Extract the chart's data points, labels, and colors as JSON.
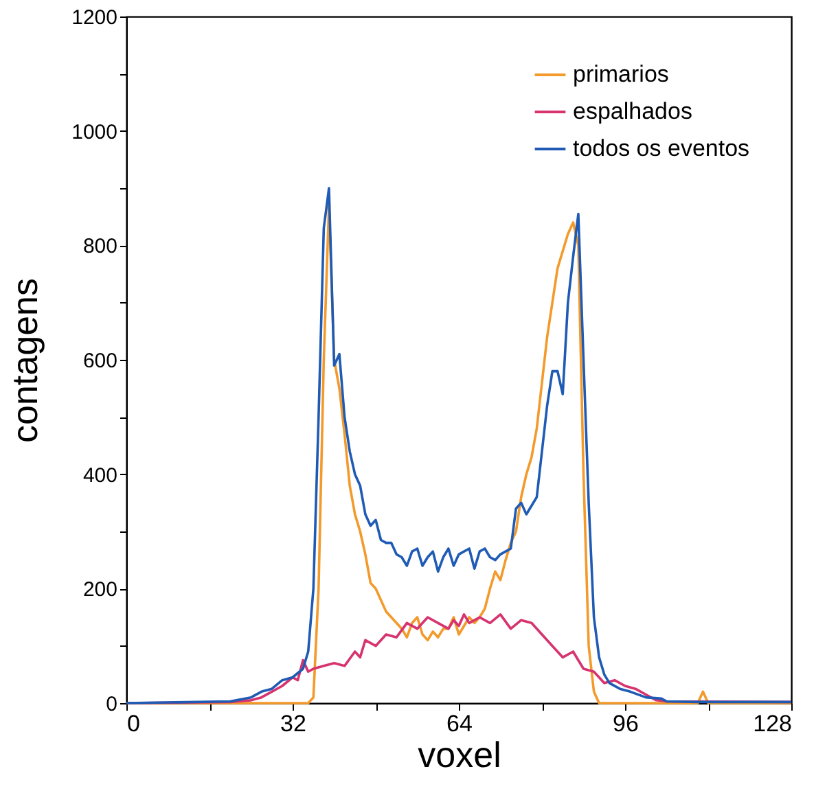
{
  "chart_data": {
    "type": "line",
    "xlabel": "voxel",
    "ylabel": "contagens",
    "xlim": [
      0,
      128
    ],
    "xticks": [
      0,
      {
        "value": 16,
        "label": null
      },
      32,
      {
        "value": 48,
        "label": null
      },
      64,
      {
        "value": 80,
        "label": null
      },
      96,
      {
        "value": 112,
        "label": null
      },
      128
    ],
    "ylim": [
      0,
      1200
    ],
    "yticks": [
      0,
      {
        "value": 100,
        "label": null
      },
      200,
      {
        "value": 300,
        "label": null
      },
      400,
      {
        "value": 500,
        "label": null
      },
      600,
      {
        "value": 700,
        "label": null
      },
      800,
      {
        "value": 900,
        "label": null
      },
      1000,
      {
        "value": 1100,
        "label": null
      },
      1200
    ],
    "grid": false,
    "legend": "top right",
    "marker": "none",
    "line_style": "solid",
    "series": [
      {
        "name": "primarios",
        "color": "#f39a2b",
        "x": [
          0,
          20,
          35,
          36,
          37,
          38,
          39,
          40,
          41,
          42,
          43,
          44,
          45,
          46,
          47,
          48,
          49,
          50,
          51,
          52,
          53,
          54,
          55,
          56,
          57,
          58,
          59,
          60,
          61,
          62,
          63,
          64,
          65,
          66,
          67,
          68,
          69,
          70,
          71,
          72,
          73,
          74,
          75,
          76,
          77,
          78,
          79,
          80,
          81,
          82,
          83,
          84,
          85,
          86,
          87,
          88,
          89,
          90,
          91,
          110,
          111,
          112,
          128
        ],
        "values": [
          0,
          0,
          0,
          10,
          200,
          600,
          870,
          600,
          550,
          470,
          380,
          330,
          300,
          260,
          210,
          200,
          180,
          160,
          150,
          140,
          130,
          115,
          140,
          150,
          120,
          110,
          125,
          115,
          130,
          130,
          150,
          120,
          135,
          150,
          140,
          150,
          165,
          200,
          230,
          215,
          250,
          280,
          300,
          360,
          400,
          430,
          480,
          560,
          640,
          700,
          760,
          790,
          820,
          840,
          800,
          400,
          100,
          20,
          0,
          0,
          20,
          0,
          0
        ]
      },
      {
        "name": "espalhados",
        "color": "#d6336f",
        "x": [
          0,
          20,
          24,
          26,
          28,
          30,
          32,
          33,
          34,
          35,
          36,
          38,
          40,
          42,
          44,
          45,
          46,
          48,
          50,
          52,
          54,
          56,
          58,
          60,
          62,
          63,
          64,
          65,
          66,
          68,
          70,
          72,
          74,
          76,
          78,
          80,
          82,
          84,
          86,
          88,
          90,
          92,
          94,
          96,
          98,
          100,
          102,
          104,
          128
        ],
        "values": [
          0,
          2,
          5,
          10,
          20,
          30,
          45,
          40,
          75,
          55,
          60,
          65,
          70,
          65,
          90,
          80,
          110,
          100,
          120,
          115,
          140,
          130,
          150,
          140,
          130,
          145,
          135,
          155,
          140,
          150,
          140,
          155,
          130,
          145,
          140,
          120,
          100,
          80,
          90,
          60,
          55,
          35,
          40,
          30,
          25,
          15,
          5,
          3,
          2
        ]
      },
      {
        "name": "todos os eventos",
        "color": "#1f5bb5",
        "x": [
          0,
          20,
          24,
          26,
          28,
          30,
          32,
          34,
          35,
          36,
          37,
          38,
          39,
          40,
          41,
          42,
          43,
          44,
          45,
          46,
          47,
          48,
          49,
          50,
          51,
          52,
          53,
          54,
          55,
          56,
          57,
          58,
          59,
          60,
          61,
          62,
          63,
          64,
          65,
          66,
          67,
          68,
          69,
          70,
          71,
          72,
          73,
          74,
          75,
          76,
          77,
          78,
          79,
          80,
          81,
          82,
          83,
          84,
          85,
          86,
          87,
          88,
          89,
          90,
          91,
          92,
          93,
          95,
          97,
          100,
          103,
          104,
          110,
          128
        ],
        "values": [
          0,
          3,
          10,
          20,
          25,
          40,
          45,
          60,
          90,
          200,
          500,
          830,
          900,
          590,
          610,
          500,
          440,
          400,
          380,
          330,
          310,
          320,
          285,
          280,
          280,
          260,
          255,
          240,
          265,
          270,
          240,
          255,
          265,
          230,
          255,
          270,
          240,
          260,
          265,
          270,
          235,
          265,
          270,
          255,
          250,
          260,
          265,
          270,
          340,
          350,
          330,
          345,
          360,
          440,
          520,
          580,
          580,
          540,
          700,
          780,
          855,
          600,
          350,
          150,
          80,
          50,
          35,
          25,
          20,
          10,
          8,
          3,
          2,
          2
        ]
      }
    ]
  }
}
